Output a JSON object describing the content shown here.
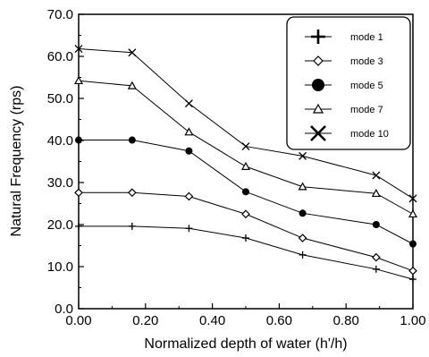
{
  "chart_data": {
    "type": "line",
    "xlabel": "Normalized depth of water (h'/h)",
    "ylabel": "Natural Frequency (rps)",
    "xlim": [
      0.0,
      1.0
    ],
    "ylim": [
      0.0,
      70.0
    ],
    "x_ticks": [
      "0.00",
      "0.20",
      "0.40",
      "0.60",
      "0.80",
      "1.00"
    ],
    "y_ticks": [
      "0.0",
      "10.0",
      "20.0",
      "30.0",
      "40.0",
      "50.0",
      "60.0",
      "70.0"
    ],
    "grid": false,
    "legend_position": "top-right",
    "x": [
      0.0,
      0.16,
      0.33,
      0.5,
      0.67,
      0.89,
      1.0
    ],
    "series": [
      {
        "name": "mode 1",
        "marker": "plus",
        "values": [
          19.6,
          19.6,
          19.1,
          16.8,
          12.8,
          9.4,
          7.0
        ]
      },
      {
        "name": "mode 3",
        "marker": "diamond",
        "values": [
          27.6,
          27.6,
          26.7,
          22.5,
          16.8,
          12.2,
          9.0
        ]
      },
      {
        "name": "mode 5",
        "marker": "circle",
        "values": [
          40.1,
          40.1,
          37.5,
          27.8,
          22.7,
          20.0,
          15.4
        ]
      },
      {
        "name": "mode 7",
        "marker": "triangle",
        "values": [
          54.2,
          53.0,
          42.0,
          33.8,
          29.0,
          27.4,
          22.5
        ]
      },
      {
        "name": "mode 10",
        "marker": "x",
        "values": [
          61.8,
          60.9,
          48.8,
          38.6,
          36.3,
          31.7,
          26.2
        ]
      }
    ]
  }
}
